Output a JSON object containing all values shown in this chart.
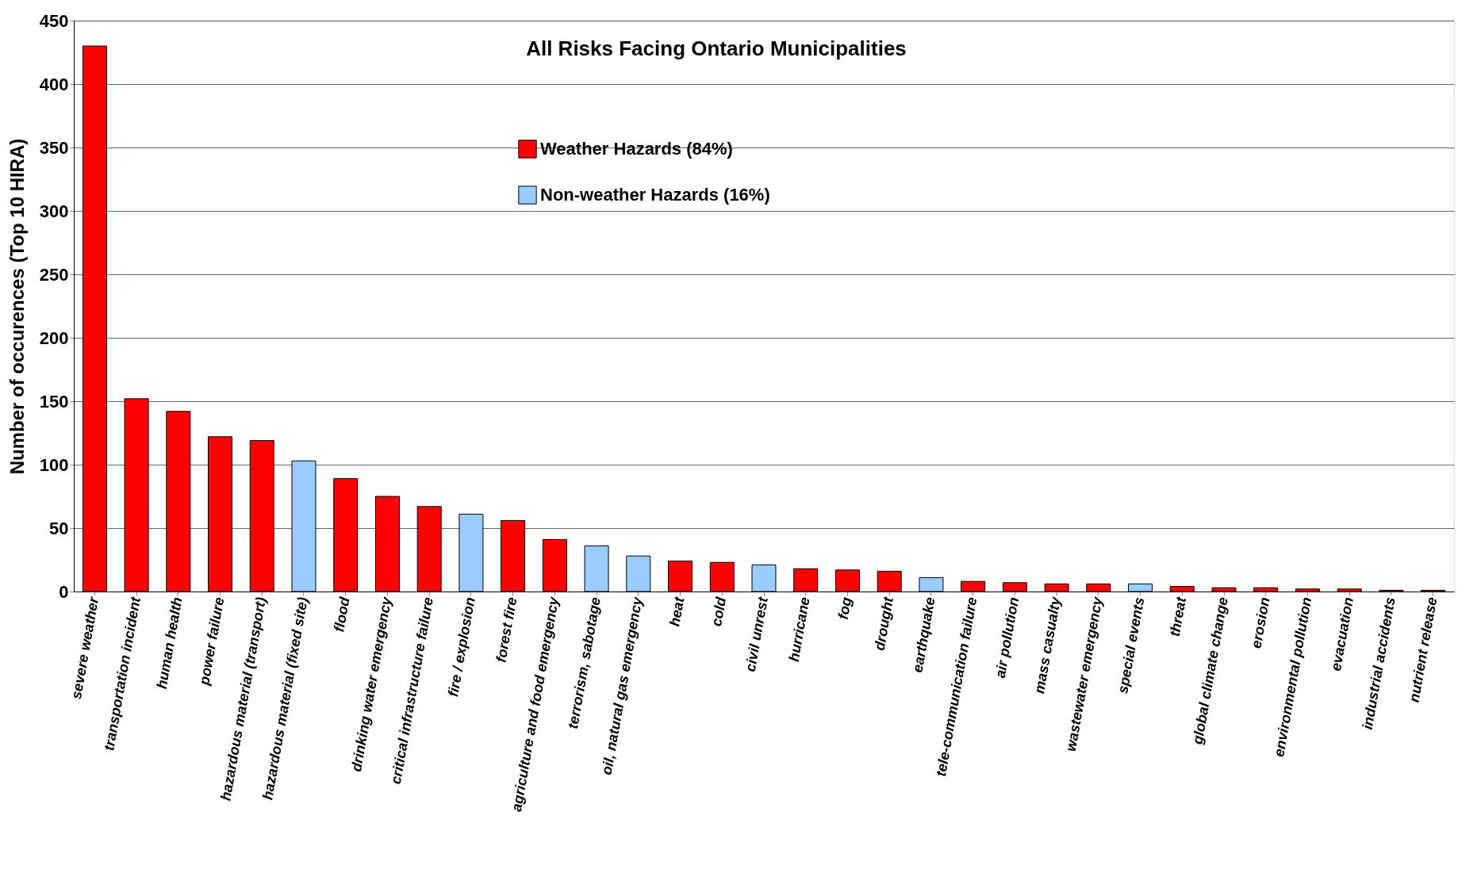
{
  "chart_data": {
    "type": "bar",
    "title": "All Risks Facing Ontario Municipalities",
    "ylabel": "Number of occurences (Top 10 HIRA)",
    "categories": [
      "severe weather",
      "transportation  incident",
      "human health",
      "power failure",
      "hazardous material (transport)",
      "hazardous material (fixed site)",
      "flood",
      "drinking water emergency",
      "critical infrastructure failure",
      "fire / explosion",
      "forest fire",
      "agriculture and food emergency",
      "terrorism, sabotage",
      "oil, natural gas emergency",
      "heat",
      "cold",
      "civil unrest",
      "hurricane",
      "fog",
      "drought",
      "earthquake",
      "tele-communication failure",
      "air pollution",
      "mass casualty",
      "wastewater emergency",
      "special events",
      "threat",
      "global climate change",
      "erosion",
      "environmental pollution",
      "evacuation",
      "industrial accidents",
      "nutrient release"
    ],
    "series": [
      {
        "name": "Weather  Hazards (84%)",
        "color": "#ff0000",
        "values": [
          430,
          152,
          142,
          122,
          119,
          null,
          89,
          75,
          67,
          null,
          56,
          41,
          null,
          null,
          24,
          23,
          null,
          18,
          17,
          16,
          null,
          8,
          7,
          6,
          6,
          null,
          4,
          3,
          3,
          2,
          2,
          1,
          1
        ]
      },
      {
        "name": "Non-weather Hazards (16%)",
        "color": "#99ccff",
        "values": [
          null,
          null,
          null,
          null,
          null,
          103,
          null,
          null,
          null,
          61,
          null,
          null,
          36,
          28,
          null,
          null,
          21,
          null,
          null,
          null,
          11,
          null,
          null,
          null,
          null,
          6,
          null,
          null,
          null,
          null,
          null,
          null,
          null
        ]
      }
    ],
    "ylim": [
      0,
      450
    ],
    "yticks": [
      0,
      50,
      100,
      150,
      200,
      250,
      300,
      350,
      400,
      450
    ],
    "grid": "y",
    "legend": "top"
  }
}
